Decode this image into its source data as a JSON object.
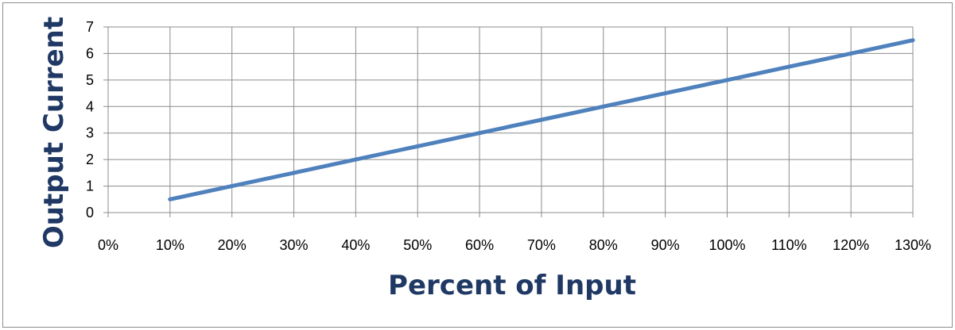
{
  "chart_data": {
    "type": "line",
    "title": "",
    "xlabel": "Percent of Input",
    "ylabel": "Output Current",
    "x_tick_labels": [
      "0%",
      "10%",
      "20%",
      "30%",
      "40%",
      "50%",
      "60%",
      "70%",
      "80%",
      "90%",
      "100%",
      "110%",
      "120%",
      "130%"
    ],
    "y_tick_labels": [
      "0",
      "1",
      "2",
      "3",
      "4",
      "5",
      "6",
      "7"
    ],
    "xlim": [
      0,
      130
    ],
    "ylim": [
      0,
      7
    ],
    "x_unit": "%",
    "grid": true,
    "legend": "none",
    "series": [
      {
        "color": "#4f81bd",
        "x": [
          10,
          20,
          30,
          40,
          50,
          60,
          70,
          80,
          90,
          100,
          110,
          120,
          130
        ],
        "y": [
          0.5,
          1,
          1.5,
          2,
          2.5,
          3,
          3.5,
          4,
          4.5,
          5,
          5.5,
          6,
          6.5
        ]
      }
    ]
  }
}
